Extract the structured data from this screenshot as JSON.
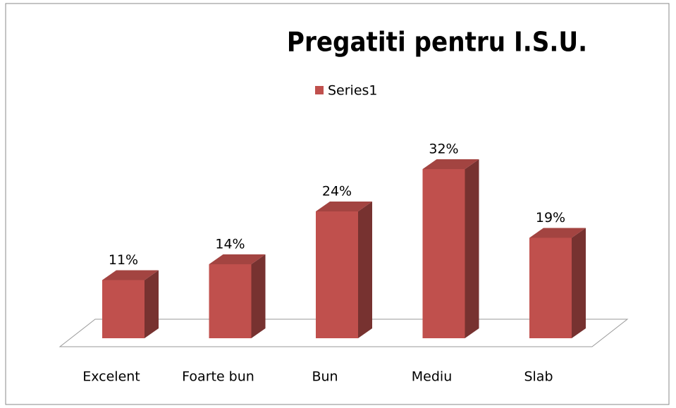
{
  "chart_data": {
    "type": "bar3d",
    "title": "Pregatiti pentru I.S.U.",
    "categories": [
      "Excelent",
      "Foarte bun",
      "Bun",
      "Mediu",
      "Slab"
    ],
    "series": [
      {
        "name": "Series1",
        "color": "#c0504d",
        "values": [
          11,
          14,
          24,
          32,
          19
        ],
        "value_labels": [
          "11%",
          "14%",
          "24%",
          "32%",
          "19%"
        ]
      }
    ],
    "legend": "top"
  }
}
